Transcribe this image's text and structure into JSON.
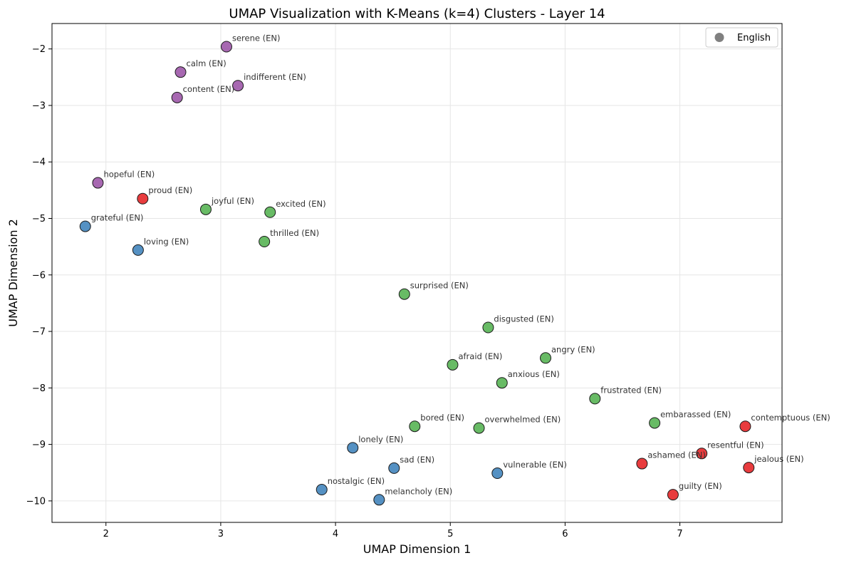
{
  "chart_data": {
    "type": "scatter",
    "title": "UMAP Visualization with K-Means (k=4) Clusters - Layer 14",
    "xlabel": "UMAP Dimension 1",
    "ylabel": "UMAP Dimension 2",
    "xlim": [
      1.53,
      7.89
    ],
    "ylim": [
      -10.38,
      -1.55
    ],
    "xticks": [
      "2",
      "3",
      "4",
      "5",
      "6",
      "7"
    ],
    "yticks": [
      "−2",
      "−3",
      "−4",
      "−5",
      "−6",
      "−7",
      "−8",
      "−9",
      "−10"
    ],
    "grid": true,
    "legend": {
      "position": "top-right",
      "entries": [
        "English"
      ],
      "marker_color": "#808080"
    },
    "cluster_colors": {
      "purple": "#984ea3",
      "red": "#e41a1c",
      "green": "#4daf4a",
      "blue": "#377eb8"
    },
    "points": [
      {
        "label": "serene (EN)",
        "x": 3.05,
        "y": -1.96,
        "cluster": "purple"
      },
      {
        "label": "calm (EN)",
        "x": 2.65,
        "y": -2.41,
        "cluster": "purple"
      },
      {
        "label": "indifferent (EN)",
        "x": 3.15,
        "y": -2.65,
        "cluster": "purple"
      },
      {
        "label": "content (EN)",
        "x": 2.62,
        "y": -2.86,
        "cluster": "purple"
      },
      {
        "label": "hopeful (EN)",
        "x": 1.93,
        "y": -4.37,
        "cluster": "purple"
      },
      {
        "label": "proud (EN)",
        "x": 2.32,
        "y": -4.65,
        "cluster": "red"
      },
      {
        "label": "joyful (EN)",
        "x": 2.87,
        "y": -4.84,
        "cluster": "green"
      },
      {
        "label": "excited (EN)",
        "x": 3.43,
        "y": -4.89,
        "cluster": "green"
      },
      {
        "label": "grateful (EN)",
        "x": 1.82,
        "y": -5.14,
        "cluster": "blue"
      },
      {
        "label": "thrilled (EN)",
        "x": 3.38,
        "y": -5.41,
        "cluster": "green"
      },
      {
        "label": "loving (EN)",
        "x": 2.28,
        "y": -5.56,
        "cluster": "blue"
      },
      {
        "label": "surprised (EN)",
        "x": 4.6,
        "y": -6.34,
        "cluster": "green"
      },
      {
        "label": "disgusted (EN)",
        "x": 5.33,
        "y": -6.93,
        "cluster": "green"
      },
      {
        "label": "angry (EN)",
        "x": 5.83,
        "y": -7.47,
        "cluster": "green"
      },
      {
        "label": "afraid (EN)",
        "x": 5.02,
        "y": -7.59,
        "cluster": "green"
      },
      {
        "label": "anxious (EN)",
        "x": 5.45,
        "y": -7.91,
        "cluster": "green"
      },
      {
        "label": "frustrated (EN)",
        "x": 6.26,
        "y": -8.19,
        "cluster": "green"
      },
      {
        "label": "embarassed (EN)",
        "x": 6.78,
        "y": -8.62,
        "cluster": "green"
      },
      {
        "label": "contemptuous (EN)",
        "x": 7.57,
        "y": -8.68,
        "cluster": "red"
      },
      {
        "label": "bored (EN)",
        "x": 4.69,
        "y": -8.68,
        "cluster": "green"
      },
      {
        "label": "overwhelmed (EN)",
        "x": 5.25,
        "y": -8.71,
        "cluster": "green"
      },
      {
        "label": "lonely (EN)",
        "x": 4.15,
        "y": -9.06,
        "cluster": "blue"
      },
      {
        "label": "resentful (EN)",
        "x": 7.19,
        "y": -9.16,
        "cluster": "red"
      },
      {
        "label": "ashamed (EN)",
        "x": 6.67,
        "y": -9.34,
        "cluster": "red"
      },
      {
        "label": "jealous (EN)",
        "x": 7.6,
        "y": -9.41,
        "cluster": "red"
      },
      {
        "label": "sad (EN)",
        "x": 4.51,
        "y": -9.42,
        "cluster": "blue"
      },
      {
        "label": "vulnerable (EN)",
        "x": 5.41,
        "y": -9.51,
        "cluster": "blue"
      },
      {
        "label": "nostalgic (EN)",
        "x": 3.88,
        "y": -9.8,
        "cluster": "blue"
      },
      {
        "label": "guilty (EN)",
        "x": 6.94,
        "y": -9.89,
        "cluster": "red"
      },
      {
        "label": "melancholy (EN)",
        "x": 4.38,
        "y": -9.98,
        "cluster": "blue"
      }
    ]
  }
}
